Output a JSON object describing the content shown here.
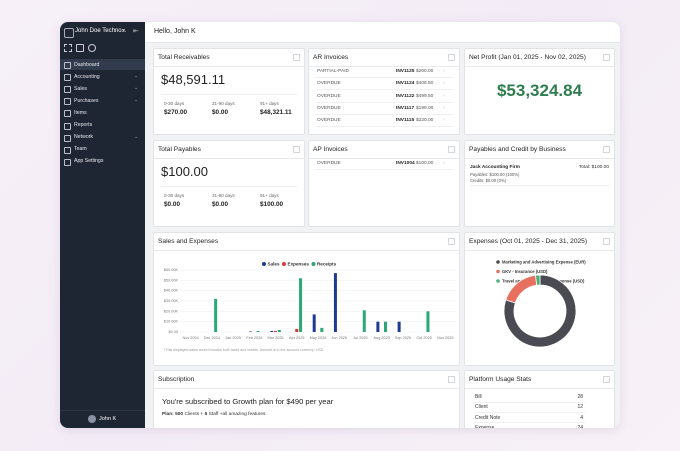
{
  "sidebar": {
    "company": "John Doe Techno...",
    "nav": [
      "Dashboard",
      "Accounting",
      "Sales",
      "Purchases",
      "Items",
      "Reports",
      "Network",
      "Team",
      "App Settings"
    ],
    "user": "John K"
  },
  "header": {
    "greeting": "Hello, John K"
  },
  "receivables": {
    "title": "Total Receivables",
    "amount": "$48,591.11",
    "buckets": [
      {
        "label": "0-30 days",
        "amount": "$270.00"
      },
      {
        "label": "31-90 days",
        "amount": "$0.00"
      },
      {
        "label": "91+ days",
        "amount": "$48,321.11"
      }
    ]
  },
  "ar_invoices": {
    "title": "AR Invoices",
    "rows": [
      {
        "status": "PARTIAL-PAID",
        "invoice": "INV1125",
        "amount": "$200.00"
      },
      {
        "status": "OVERDUE",
        "invoice": "INV1124",
        "amount": "$406.50"
      },
      {
        "status": "OVERDUE",
        "invoice": "INV1122",
        "amount": "$499.50"
      },
      {
        "status": "OVERDUE",
        "invoice": "INV1117",
        "amount": "$199.00"
      },
      {
        "status": "OVERDUE",
        "invoice": "INV1115",
        "amount": "$220.00"
      }
    ]
  },
  "net_profit": {
    "title": "Net Profit (Jan 01, 2025 - Nov 02, 2025)",
    "amount": "$53,324.84"
  },
  "payables": {
    "title": "Total Payables",
    "amount": "$100.00",
    "buckets": [
      {
        "label": "0-30 days",
        "amount": "$0.00"
      },
      {
        "label": "31-90 days",
        "amount": "$0.00"
      },
      {
        "label": "91+ days",
        "amount": "$100.00"
      }
    ]
  },
  "ap_invoices": {
    "title": "AP Invoices",
    "rows": [
      {
        "status": "OVERDUE",
        "invoice": "INV1004",
        "amount": "$100.00"
      }
    ]
  },
  "business": {
    "title": "Payables and Credit by Business",
    "name": "Jack Accounting Firm",
    "total": "Total: $100.00",
    "payables": "Payables: $100.00 (100%)",
    "credits": "Credits: $0.00 (0%)"
  },
  "chart_data": [
    {
      "type": "bar",
      "title": "Sales and Expenses",
      "categories": [
        "Nov 2024",
        "Dec 2024",
        "Jan 2025",
        "Feb 2025",
        "Mar 2025",
        "Apr 2025",
        "May 2025",
        "Jun 2025",
        "Jul 2025",
        "Aug 2025",
        "Sep 2025",
        "Oct 2025",
        "Nov 2025"
      ],
      "series": [
        {
          "name": "Sales",
          "color": "#1f3a93",
          "values": [
            0,
            0,
            0,
            500,
            1000,
            0,
            17000,
            57000,
            0,
            10000,
            10000,
            0,
            0
          ]
        },
        {
          "name": "Expenses",
          "color": "#d63a3a",
          "values": [
            0,
            0,
            0,
            0,
            1000,
            3000,
            0,
            0,
            0,
            0,
            0,
            0,
            0
          ]
        },
        {
          "name": "Receipts",
          "color": "#2aa876",
          "values": [
            0,
            32000,
            0,
            1000,
            2000,
            52000,
            4000,
            0,
            21000,
            10000,
            0,
            20000,
            0
          ]
        }
      ],
      "ylim": [
        0,
        60000
      ],
      "yticks": [
        {
          "value": 0,
          "label": "$0.00"
        },
        {
          "value": 10000,
          "label": "$10.00K"
        },
        {
          "value": 20000,
          "label": "$20.00K"
        },
        {
          "value": 30000,
          "label": "$30.00K"
        },
        {
          "value": 40000,
          "label": "$40.00K"
        },
        {
          "value": 50000,
          "label": "$50.00K"
        },
        {
          "value": 60000,
          "label": "$60.00K"
        }
      ],
      "grid": true,
      "note": "*This displayed sales count includes both taxes and credits. Amount is in the account currency: USD"
    },
    {
      "type": "pie",
      "title": "Expenses (Oct 01, 2025 - Dec 31, 2025)",
      "categories": [
        "Marketing and Advertising Expense (EUR)",
        "GKV - Insurance (USD)",
        "Travel and Transportation Expense (USD)"
      ],
      "values": [
        80,
        18,
        2
      ],
      "colors": [
        "#4a4a52",
        "#e8705f",
        "#4caf7a"
      ]
    }
  ],
  "subscription": {
    "title": "Subscription",
    "message": "You're subscribed to Growth plan for $490 per year",
    "plan_label": "Plan:",
    "clients": "500",
    "clients_label": "Clients +",
    "staff": "5",
    "staff_label": "Staff",
    "extra": "+all amazing features"
  },
  "usage": {
    "title": "Platform Usage Stats",
    "rows": [
      {
        "label": "Bill",
        "value": 28
      },
      {
        "label": "Client",
        "value": 12
      },
      {
        "label": "Credit Note",
        "value": 4
      },
      {
        "label": "Expense",
        "value": 24
      }
    ]
  }
}
